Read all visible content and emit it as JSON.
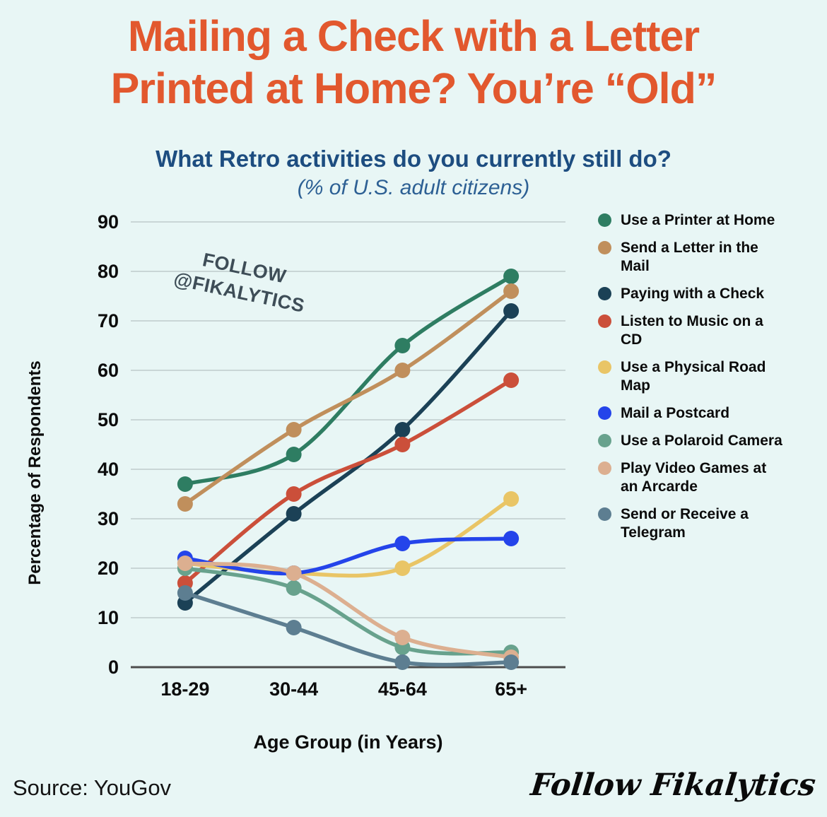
{
  "page": {
    "background": "#e8f6f5"
  },
  "title": {
    "line1": "Mailing a Check with a Letter",
    "line2": "Printed at Home? You’re “Old”",
    "color": "#e2582e"
  },
  "subtitle": {
    "text": "What Retro activities do you currently still do?",
    "color": "#1d4d80"
  },
  "subtitle2": {
    "text": "(% of U.S. adult citizens)",
    "color": "#2d6094"
  },
  "watermark": {
    "line1": "FOLLOW",
    "line2": "@FIKALYTICS",
    "color": "#3e4d57",
    "rotation_deg": 12
  },
  "chart_data": {
    "type": "line",
    "categories": [
      "18-29",
      "30-44",
      "45-64",
      "65+"
    ],
    "series": [
      {
        "name": "Use a Printer at Home",
        "color": "#2e7d62",
        "values": [
          37,
          43,
          65,
          79
        ]
      },
      {
        "name": "Send a Letter in the Mail",
        "color": "#c08f5c",
        "values": [
          33,
          48,
          60,
          76
        ]
      },
      {
        "name": "Paying with a Check",
        "color": "#1b4156",
        "values": [
          13,
          31,
          48,
          72
        ]
      },
      {
        "name": "Listen to Music on a CD",
        "color": "#cb4f3a",
        "values": [
          17,
          35,
          45,
          58
        ]
      },
      {
        "name": "Use a Physical Road Map",
        "color": "#e9c566",
        "values": [
          21,
          19,
          20,
          34
        ]
      },
      {
        "name": "Mail a Postcard",
        "color": "#2444ea",
        "values": [
          22,
          19,
          25,
          26
        ]
      },
      {
        "name": "Use a Polaroid Camera",
        "color": "#68a28d",
        "values": [
          20,
          16,
          4,
          3
        ]
      },
      {
        "name": "Play Video Games at an Arcarde",
        "color": "#dcaf90",
        "values": [
          21,
          19,
          6,
          2
        ]
      },
      {
        "name": "Send or Receive a Telegram",
        "color": "#5d7e91",
        "values": [
          15,
          8,
          1,
          1
        ]
      }
    ],
    "xlabel": "Age Group (in Years)",
    "ylabel": "Percentage of Respondents",
    "yticks": [
      0,
      10,
      20,
      30,
      40,
      50,
      60,
      70,
      80,
      90
    ],
    "ylim": [
      0,
      90
    ],
    "grid": true,
    "grid_color": "#c9d6d6",
    "axis_color": "#4d4d4d",
    "legend_position": "right"
  },
  "footer": {
    "source": "Source: YouGov",
    "brand": "Follow Fikalytics"
  }
}
